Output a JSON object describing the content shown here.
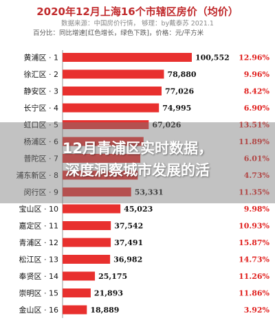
{
  "header": {
    "title": "2020年12月上海16个市辖区房价（均价）",
    "source": "数据来源：中国房价行情， 够理：by戴泰苏 2021.1",
    "note": "百分比：同比增速[红色增长，绿色下跌]，价格：元/平方米"
  },
  "overlay": {
    "line1": "12月青浦区实时数据，",
    "line2": "深度洞察城市发展的活"
  },
  "colors": {
    "bar": "#e8302e",
    "percent": "#e0201e",
    "value_text": "#111111",
    "label_text": "#111111",
    "title": "#c0282a"
  },
  "chart_data": {
    "type": "bar",
    "orientation": "horizontal",
    "categories": [
      "黄浦区 · 1",
      "徐汇区 · 2",
      "静安区 · 3",
      "长宁区 · 4",
      "虹口区 · 5",
      "杨浦区 · 6",
      "普陀区 · 7",
      "浦东新区 · 8",
      "闵行区 · 9",
      "宝山区 · 10",
      "嘉定区 · 11",
      "青浦区 · 12",
      "松江区 · 13",
      "奉贤区 · 14",
      "崇明区 · 15",
      "金山区 · 16"
    ],
    "values": [
      100552,
      78880,
      77026,
      74995,
      67026,
      63000,
      60500,
      58500,
      53331,
      45023,
      37542,
      37491,
      36982,
      25175,
      21893,
      18889
    ],
    "value_labels": [
      "100,552",
      "78,880",
      "77,026",
      "74,995",
      "67,026",
      "",
      "",
      "",
      "53,331",
      "45,023",
      "37,542",
      "37,491",
      "36,982",
      "25,175",
      "21,893",
      "18,889"
    ],
    "percent_labels": [
      "12.96%",
      "9.96%",
      "8.42%",
      "6.90%",
      "13.51%",
      "11.89%",
      "6.01%",
      "4.73%",
      "11.35%",
      "9.98%",
      "10.93%",
      "15.87%",
      "14.73%",
      "11.26%",
      "11.86%",
      "3.92%"
    ],
    "xlim": [
      0,
      100552
    ],
    "grid": false,
    "legend": "none"
  }
}
